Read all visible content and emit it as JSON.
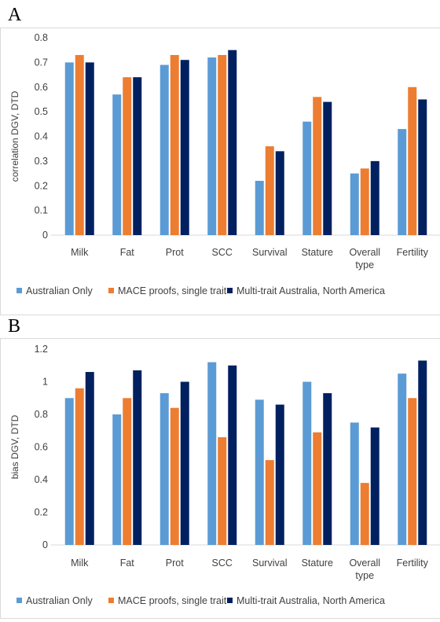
{
  "panels": [
    {
      "letter": "A"
    },
    {
      "letter": "B"
    }
  ],
  "colors": {
    "australian_only": "#5b9bd5",
    "mace_single": "#ed7d31",
    "multi_trait": "#002060",
    "gridline": "#d9d9d9",
    "text": "#404040"
  },
  "chart_data": [
    {
      "type": "bar",
      "title": "",
      "xlabel": "",
      "ylabel": "correlation DGV, DTD",
      "ylim": [
        0,
        0.8
      ],
      "yticks": [
        "0",
        "0.1",
        "0.2",
        "0.3",
        "0.4",
        "0.5",
        "0.6",
        "0.7",
        "0.8"
      ],
      "categories": [
        "Milk",
        "Fat",
        "Prot",
        "SCC",
        "Survival",
        "Stature",
        "Overall type",
        "Fertility"
      ],
      "legend_position": "bottom",
      "grid": false,
      "series": [
        {
          "name": "Australian Only",
          "values": [
            0.7,
            0.57,
            0.69,
            0.72,
            0.22,
            0.46,
            0.25,
            0.43
          ]
        },
        {
          "name": "MACE proofs, single trait",
          "values": [
            0.73,
            0.64,
            0.73,
            0.73,
            0.36,
            0.56,
            0.27,
            0.6
          ]
        },
        {
          "name": "Multi-trait Australia, North America",
          "values": [
            0.7,
            0.64,
            0.71,
            0.75,
            0.34,
            0.54,
            0.3,
            0.55
          ]
        }
      ]
    },
    {
      "type": "bar",
      "title": "",
      "xlabel": "",
      "ylabel": "bias DGV, DTD",
      "ylim": [
        0,
        1.2
      ],
      "yticks": [
        "0",
        "0.2",
        "0.4",
        "0.6",
        "0.8",
        "1",
        "1.2"
      ],
      "categories": [
        "Milk",
        "Fat",
        "Prot",
        "SCC",
        "Survival",
        "Stature",
        "Overall type",
        "Fertility"
      ],
      "legend_position": "bottom",
      "grid": false,
      "series": [
        {
          "name": "Australian Only",
          "values": [
            0.9,
            0.8,
            0.93,
            1.12,
            0.89,
            1.0,
            0.75,
            1.05
          ]
        },
        {
          "name": "MACE proofs, single trait",
          "values": [
            0.96,
            0.9,
            0.84,
            0.66,
            0.52,
            0.69,
            0.38,
            0.9
          ]
        },
        {
          "name": "Multi-trait Australia, North America",
          "values": [
            1.06,
            1.07,
            1.0,
            1.1,
            0.86,
            0.93,
            0.72,
            1.13
          ]
        }
      ]
    }
  ]
}
